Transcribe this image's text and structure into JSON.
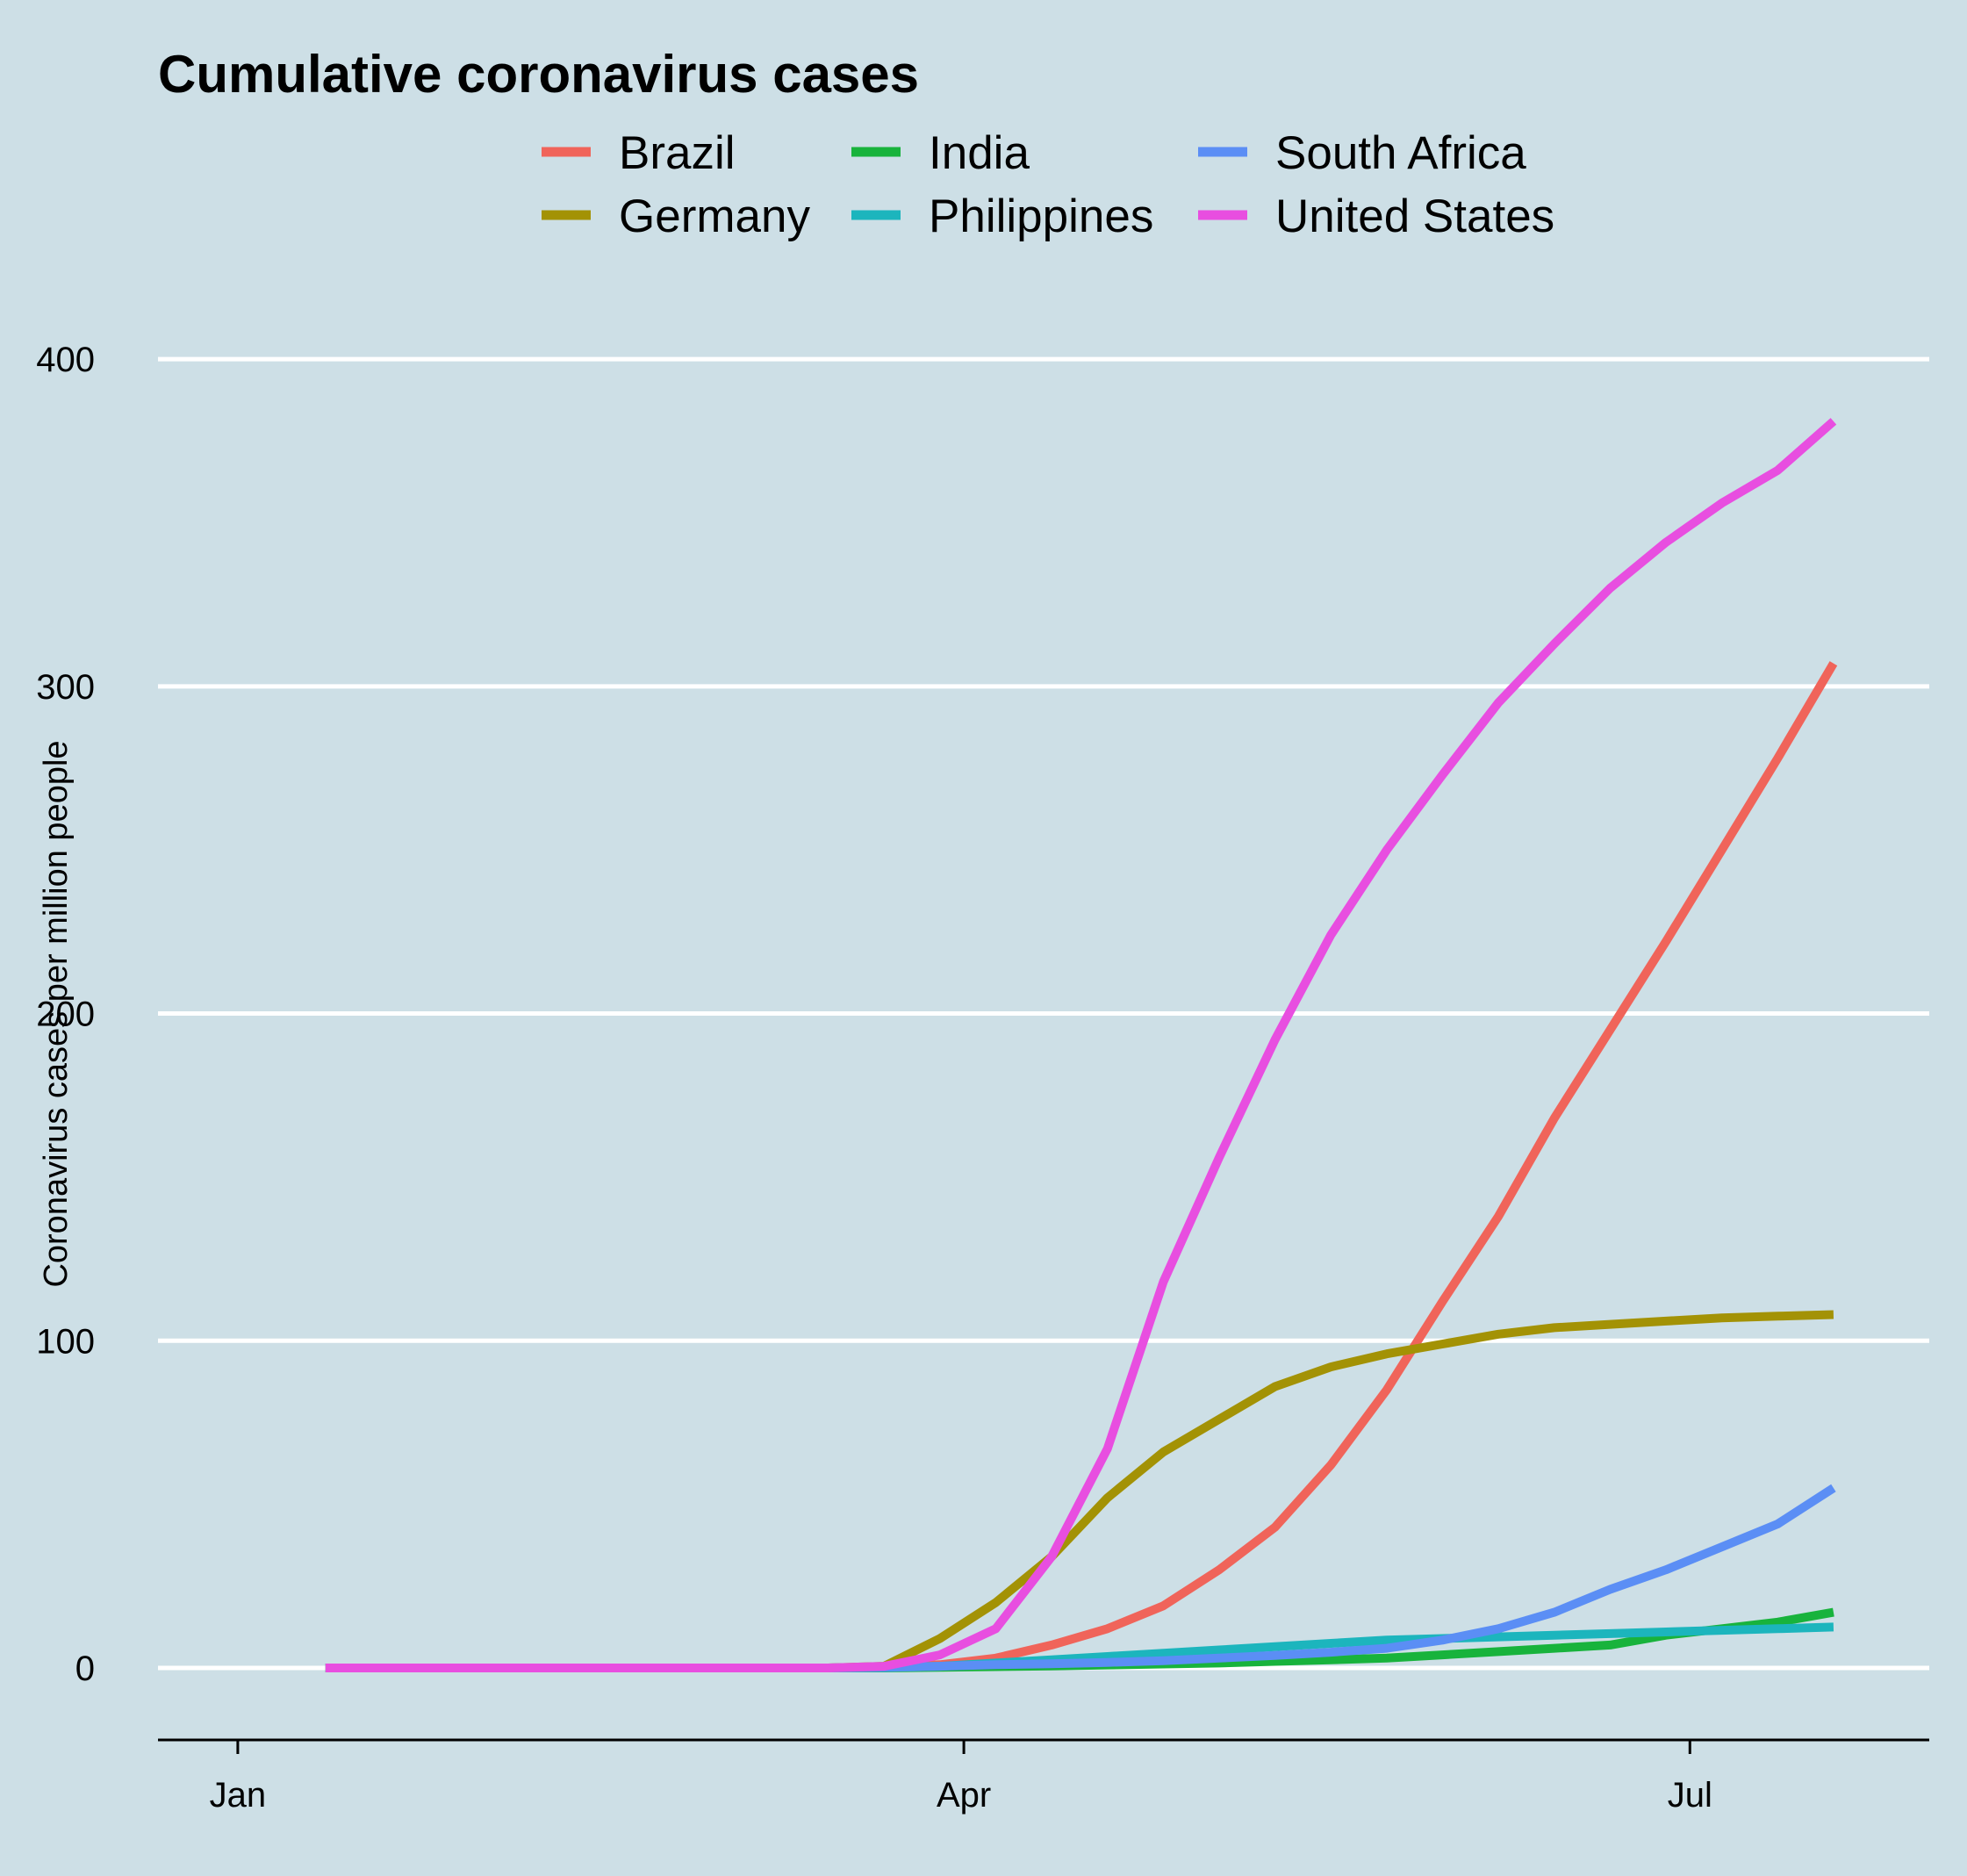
{
  "chart_data": {
    "type": "line",
    "title": "Cumulative coronavirus cases",
    "xlabel": "",
    "ylabel": "Coronavirus cases per million people",
    "x_ticks": [
      {
        "label": "Jan",
        "date": "2020-01-01"
      },
      {
        "label": "Apr",
        "date": "2020-04-01"
      },
      {
        "label": "Jul",
        "date": "2020-07-01"
      }
    ],
    "y_ticks": [
      0,
      100,
      200,
      300,
      400
    ],
    "xlim": [
      "2019-12-22",
      "2020-07-31"
    ],
    "ylim": [
      -22,
      440
    ],
    "grid": {
      "horizontal": true,
      "vertical": false
    },
    "legend_position": "top",
    "x": [
      "2020-01-12",
      "2020-01-19",
      "2020-01-26",
      "2020-02-02",
      "2020-02-09",
      "2020-02-16",
      "2020-02-23",
      "2020-03-01",
      "2020-03-08",
      "2020-03-15",
      "2020-03-22",
      "2020-03-29",
      "2020-04-05",
      "2020-04-12",
      "2020-04-19",
      "2020-04-26",
      "2020-05-03",
      "2020-05-10",
      "2020-05-17",
      "2020-05-24",
      "2020-05-31",
      "2020-06-07",
      "2020-06-14",
      "2020-06-21",
      "2020-06-28",
      "2020-07-05",
      "2020-07-12",
      "2020-07-19"
    ],
    "series": [
      {
        "name": "Brazil",
        "color": "#f0645a",
        "values": [
          0,
          0,
          0,
          0,
          0,
          0,
          0,
          0,
          0,
          0,
          0.2,
          1,
          3,
          7,
          12,
          19,
          30,
          43,
          62,
          85,
          112,
          138,
          168,
          195,
          222,
          250,
          278,
          307
        ]
      },
      {
        "name": "Germany",
        "color": "#a39205",
        "values": [
          0,
          0,
          0,
          0,
          0,
          0,
          0,
          0,
          0,
          0,
          0.5,
          9,
          20,
          34,
          52,
          66,
          76,
          86,
          92,
          96,
          99,
          102,
          104,
          105,
          106,
          107,
          107.5,
          108
        ]
      },
      {
        "name": "India",
        "color": "#18b33c",
        "values": [
          0,
          0,
          0,
          0,
          0,
          0,
          0,
          0,
          0,
          0,
          0,
          0.2,
          0.4,
          0.6,
          0.9,
          1.2,
          1.5,
          2,
          2.5,
          3,
          4,
          5,
          6,
          7,
          10,
          12,
          14,
          17
        ]
      },
      {
        "name": "Philippines",
        "color": "#1cb5bd",
        "values": [
          0,
          0,
          0,
          0,
          0,
          0,
          0,
          0,
          0,
          0,
          0.1,
          0.5,
          1.5,
          2.5,
          3.5,
          4.5,
          5.5,
          6.5,
          7.5,
          8.5,
          9,
          9.5,
          10,
          10.5,
          11,
          11.5,
          12,
          12.5
        ]
      },
      {
        "name": "South Africa",
        "color": "#5b8ef5",
        "values": [
          0,
          0,
          0,
          0,
          0,
          0,
          0,
          0,
          0,
          0,
          0.2,
          0.5,
          1,
          1.3,
          1.7,
          2.2,
          3,
          3.8,
          4.8,
          6,
          8.5,
          12,
          17,
          24,
          30,
          37,
          44,
          55
        ]
      },
      {
        "name": "United States",
        "color": "#e84ee0",
        "values": [
          0,
          0,
          0,
          0,
          0,
          0,
          0,
          0,
          0,
          0,
          0.5,
          4,
          12,
          34,
          67,
          118,
          156,
          192,
          224,
          250,
          273,
          295,
          313,
          330,
          344,
          356,
          366,
          381
        ]
      }
    ]
  }
}
